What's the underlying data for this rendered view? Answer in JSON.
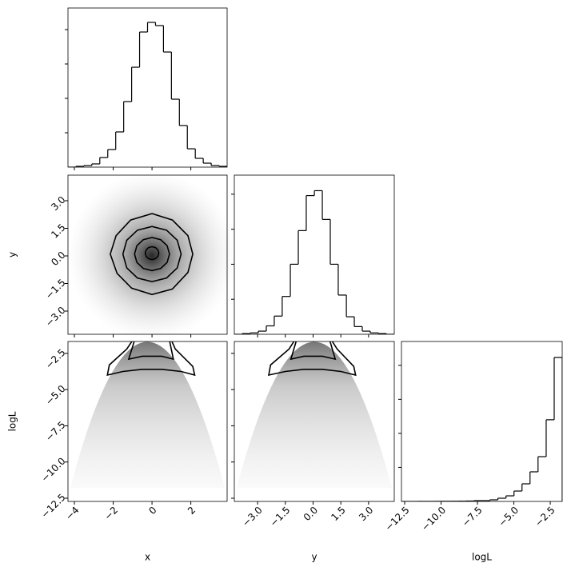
{
  "chart_data": [
    {
      "type": "histogram",
      "bins": [
        -4.33,
        -3.92,
        -3.51,
        -3.1,
        -2.69,
        -2.28,
        -1.87,
        -1.46,
        -1.05,
        -0.64,
        -0.23,
        0.18,
        0.59,
        1.0,
        1.41,
        1.82,
        2.23,
        2.64,
        3.05,
        3.46,
        3.87
      ],
      "counts": [
        0,
        12,
        23,
        47,
        140,
        256,
        512,
        953,
        1453,
        1965,
        2105,
        2058,
        1674,
        988,
        605,
        267,
        128,
        58,
        23,
        12
      ],
      "ylim": [
        0,
        2314
      ],
      "yticks": [
        500,
        1000,
        1500,
        2000
      ]
    },
    {
      "type": "contour",
      "contours": [
        {
          "x": [
            0.35,
            0.3,
            0.18,
            0,
            -0.18,
            -0.3,
            -0.35,
            -0.3,
            -0.18,
            0,
            0.18,
            0.3
          ],
          "y": [
            0.15,
            0.33,
            0.45,
            0.5,
            0.45,
            0.33,
            0.15,
            -0.03,
            -0.15,
            -0.2,
            -0.15,
            -0.03
          ]
        },
        {
          "x": [
            0.9,
            0.78,
            0.45,
            0,
            -0.45,
            -0.78,
            -0.9,
            -0.78,
            -0.45,
            0,
            0.45,
            0.78
          ],
          "y": [
            0.1,
            0.55,
            0.88,
            1.0,
            0.88,
            0.55,
            0.1,
            -0.35,
            -0.68,
            -0.8,
            -0.68,
            -0.35
          ]
        },
        {
          "x": [
            1.5,
            1.3,
            0.75,
            0,
            -0.75,
            -1.3,
            -1.5,
            -1.3,
            -0.75,
            0,
            0.75,
            1.3
          ],
          "y": [
            0.1,
            0.85,
            1.4,
            1.6,
            1.4,
            0.85,
            0.1,
            -0.65,
            -1.2,
            -1.4,
            -1.2,
            -0.65
          ]
        },
        {
          "x": [
            2.1,
            1.85,
            1.05,
            0,
            -1.1,
            -1.85,
            -2.15,
            -1.8,
            -1.05,
            0,
            1.05,
            1.85
          ],
          "y": [
            0.1,
            1.1,
            1.95,
            2.3,
            1.95,
            1.1,
            0.1,
            -0.95,
            -1.75,
            -2.1,
            -1.8,
            -0.9
          ]
        }
      ],
      "ylabel": "y",
      "ylim": [
        -4.26,
        4.39
      ],
      "yticks": [
        {
          "value": -3.0,
          "label": "−3.0"
        },
        {
          "value": -1.5,
          "label": "−1.5"
        },
        {
          "value": 0.0,
          "label": "0.0"
        },
        {
          "value": 1.5,
          "label": "1.5"
        },
        {
          "value": 3.0,
          "label": "3.0"
        }
      ]
    },
    {
      "type": "histogram",
      "bins": [
        -4.26,
        -3.83,
        -3.39,
        -2.96,
        -2.53,
        -2.1,
        -1.67,
        -1.23,
        -0.8,
        -0.37,
        0.07,
        0.5,
        0.93,
        1.36,
        1.8,
        2.23,
        2.66,
        3.09,
        3.53,
        3.96,
        4.39
      ],
      "counts": [
        0,
        10,
        20,
        45,
        120,
        260,
        540,
        1000,
        1480,
        1980,
        2050,
        1640,
        1000,
        560,
        250,
        110,
        45,
        20,
        10,
        0
      ],
      "ylim": [
        0,
        2272
      ],
      "yticks": [
        500,
        1000,
        1500,
        2000
      ]
    },
    {
      "type": "contour",
      "contours": [
        {
          "x": [
            -2.3,
            -1.5,
            -0.5,
            0.5,
            1.5,
            2.2,
            2.1,
            1.2,
            1.0,
            -1.0,
            -1.3,
            -2.2
          ],
          "y": [
            -4.0,
            -3.75,
            -3.6,
            -3.6,
            -3.75,
            -4.0,
            -3.4,
            -2.2,
            -1.6,
            -1.6,
            -2.2,
            -3.3
          ]
        },
        {
          "x": [
            -1.2,
            -0.5,
            0.5,
            1.1,
            0.9,
            -0.9
          ],
          "y": [
            -2.9,
            -2.7,
            -2.7,
            -2.9,
            -1.6,
            -1.6
          ]
        }
      ],
      "xlabel": "x",
      "ylabel": "logL",
      "xlim": [
        -4.33,
        3.87
      ],
      "xticks": [
        {
          "value": -4,
          "label": "−4"
        },
        {
          "value": -2,
          "label": "−2"
        },
        0,
        2
      ],
      "ylim": [
        -12.72,
        -1.68
      ],
      "yticks": [
        {
          "value": -12.5,
          "label": "−12.5"
        },
        {
          "value": -10.0,
          "label": "−10.0"
        },
        {
          "value": -7.5,
          "label": "−7.5"
        },
        {
          "value": -5.0,
          "label": "−5.0"
        },
        {
          "value": -2.5,
          "label": "−2.5"
        }
      ]
    },
    {
      "type": "contour",
      "contours": [
        {
          "x": [
            -2.4,
            -1.5,
            -0.5,
            0.5,
            1.5,
            2.3,
            2.2,
            1.3,
            1.0,
            -1.0,
            -1.3,
            -2.3
          ],
          "y": [
            -4.0,
            -3.75,
            -3.6,
            -3.6,
            -3.75,
            -4.0,
            -3.4,
            -2.2,
            -1.6,
            -1.6,
            -2.2,
            -3.3
          ]
        },
        {
          "x": [
            -1.2,
            -0.5,
            0.5,
            1.2,
            0.9,
            -0.9
          ],
          "y": [
            -2.9,
            -2.7,
            -2.7,
            -2.9,
            -1.6,
            -1.6
          ]
        }
      ],
      "xlabel": "y",
      "xlim": [
        -4.26,
        4.39
      ],
      "xticks": [
        {
          "value": -3.0,
          "label": "−3.0"
        },
        {
          "value": -1.5,
          "label": "−1.5"
        },
        {
          "value": 0.0,
          "label": "0.0"
        },
        {
          "value": 1.5,
          "label": "1.5"
        },
        {
          "value": 3.0,
          "label": "3.0"
        }
      ]
    },
    {
      "type": "histogram",
      "bins": [
        -12.72,
        -12.17,
        -11.62,
        -11.06,
        -10.51,
        -9.96,
        -9.41,
        -8.86,
        -8.3,
        -7.75,
        -7.2,
        -6.65,
        -6.1,
        -5.54,
        -4.99,
        -4.44,
        -3.89,
        -3.34,
        -2.78,
        -2.23,
        -1.68
      ],
      "counts": [
        0,
        0,
        2,
        2,
        3,
        5,
        6,
        8,
        12,
        23,
        23,
        47,
        94,
        164,
        305,
        517,
        870,
        1316,
        2400,
        4230
      ],
      "xlabel": "logL",
      "xlim": [
        -12.72,
        -1.68
      ],
      "xticks": [
        {
          "value": -12.5,
          "label": "−12.5"
        },
        {
          "value": -10.0,
          "label": "−10.0"
        },
        {
          "value": -7.5,
          "label": "−7.5"
        },
        {
          "value": -5.0,
          "label": "−5.0"
        },
        {
          "value": -2.5,
          "label": "−2.5"
        }
      ],
      "ylim": [
        0,
        4700
      ],
      "yticks": [
        1000,
        2000,
        3000,
        4000
      ]
    }
  ]
}
